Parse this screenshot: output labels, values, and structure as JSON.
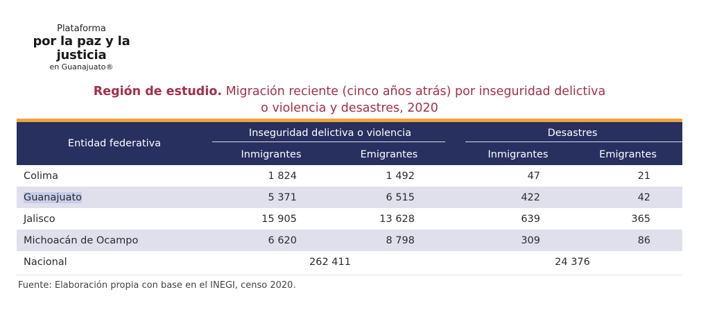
{
  "logo": {
    "line1": "Plataforma",
    "line2": "por la paz y la justicia",
    "line3": "en Guanajuato®"
  },
  "title": {
    "bold": "Región de estudio.",
    "rest": "Migración reciente (cinco años atrás) por inseguridad delictiva",
    "line2": "o violencia y desastres, 2020"
  },
  "colors": {
    "accent": "#f2a33a",
    "header_bg": "#27305f",
    "title": "#a3304a",
    "row_alt": "#e0e0ec"
  },
  "table": {
    "entity_header": "Entidad federativa",
    "groups": [
      "Inseguridad delictiva o violencia",
      "Desastres"
    ],
    "subheaders": [
      "Inmigrantes",
      "Emigrantes",
      "Inmigrantes",
      "Emigrantes"
    ],
    "rows": [
      {
        "entity": "Colima",
        "v": [
          "1 824",
          "1 492",
          "47",
          "21"
        ]
      },
      {
        "entity": "Guanajuato",
        "v": [
          "5 371",
          "6 515",
          "422",
          "42"
        ]
      },
      {
        "entity": "Jalisco",
        "v": [
          "15 905",
          "13 628",
          "639",
          "365"
        ]
      },
      {
        "entity": "Michoacán de Ocampo",
        "v": [
          "6 620",
          "8 798",
          "309",
          "86"
        ]
      }
    ],
    "total": {
      "entity": "Nacional",
      "violence": "262 411",
      "disasters": "24 376"
    }
  },
  "source": "Fuente: Elaboración propia con base en el INEGI, censo 2020."
}
